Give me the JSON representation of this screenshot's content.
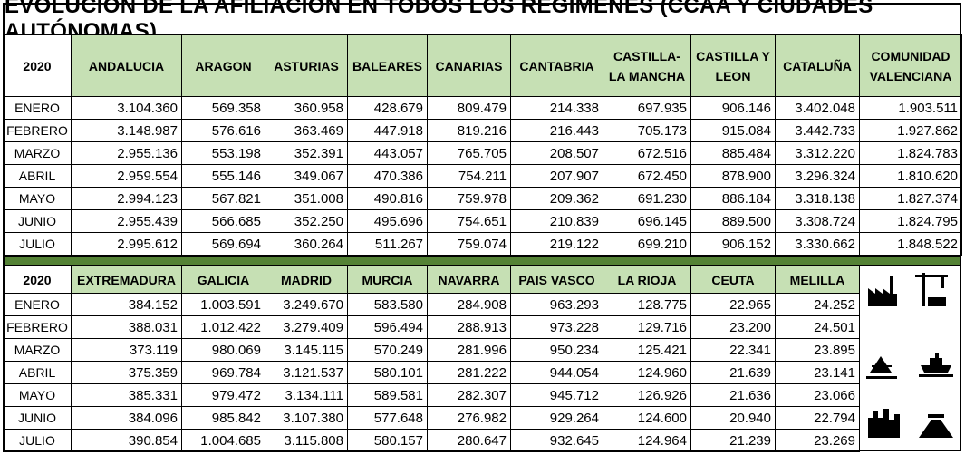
{
  "title": "EVOLUCIÓN DE LA AFILIACIÓN EN TODOS LOS REGÍMENES (CCAA Y CIUDADES AUTÓNOMAS)",
  "tables": [
    {
      "header": [
        "2020",
        "ANDALUCIA",
        "ARAGON",
        "ASTURIAS",
        "BALEARES",
        "CANARIAS",
        "CANTABRIA",
        "CASTILLA-LA MANCHA",
        "CASTILLA Y LEON",
        "CATALUÑA",
        "COMUNIDAD VALENCIANA"
      ],
      "rows": [
        [
          "ENERO",
          "3.104.360",
          "569.358",
          "360.958",
          "428.679",
          "809.479",
          "214.338",
          "697.935",
          "906.146",
          "3.402.048",
          "1.903.511"
        ],
        [
          "FEBRERO",
          "3.148.987",
          "576.616",
          "363.469",
          "447.918",
          "819.216",
          "216.443",
          "705.173",
          "915.084",
          "3.442.733",
          "1.927.862"
        ],
        [
          "MARZO",
          "2.955.136",
          "553.198",
          "352.391",
          "443.057",
          "765.705",
          "208.507",
          "672.516",
          "885.484",
          "3.312.220",
          "1.824.783"
        ],
        [
          "ABRIL",
          "2.959.554",
          "555.146",
          "349.067",
          "470.386",
          "754.211",
          "207.907",
          "672.450",
          "878.900",
          "3.296.324",
          "1.810.620"
        ],
        [
          "MAYO",
          "2.994.123",
          "567.821",
          "351.008",
          "490.816",
          "759.978",
          "209.362",
          "691.230",
          "886.184",
          "3.318.138",
          "1.827.374"
        ],
        [
          "JUNIO",
          "2.955.439",
          "566.685",
          "352.250",
          "495.696",
          "754.651",
          "210.839",
          "696.145",
          "889.500",
          "3.308.724",
          "1.824.795"
        ],
        [
          "JULIO",
          "2.995.612",
          "569.694",
          "360.264",
          "511.267",
          "759.074",
          "219.122",
          "699.210",
          "906.152",
          "3.330.662",
          "1.848.522"
        ]
      ]
    },
    {
      "header": [
        "2020",
        "EXTREMADURA",
        "GALICIA",
        "MADRID",
        "MURCIA",
        "NAVARRA",
        "PAIS VASCO",
        "LA RIOJA",
        "CEUTA",
        "MELILLA"
      ],
      "rows": [
        [
          "ENERO",
          "384.152",
          "1.003.591",
          "3.249.670",
          "583.580",
          "284.908",
          "963.293",
          "128.775",
          "22.965",
          "24.252"
        ],
        [
          "FEBRERO",
          "388.031",
          "1.012.422",
          "3.279.409",
          "596.494",
          "288.913",
          "973.228",
          "129.716",
          "23.200",
          "24.501"
        ],
        [
          "MARZO",
          "373.119",
          "980.069",
          "3.145.115",
          "570.249",
          "281.996",
          "950.234",
          "125.421",
          "22.341",
          "23.895"
        ],
        [
          "ABRIL",
          "375.359",
          "969.784",
          "3.121.537",
          "580.101",
          "281.222",
          "944.054",
          "124.960",
          "21.639",
          "23.141"
        ],
        [
          "MAYO",
          "385.331",
          "979.472",
          "3.134.111",
          "589.581",
          "282.307",
          "945.712",
          "126.926",
          "21.636",
          "23.066"
        ],
        [
          "JUNIO",
          "384.096",
          "985.842",
          "3.107.380",
          "577.648",
          "276.982",
          "929.264",
          "124.600",
          "20.940",
          "22.794"
        ],
        [
          "JULIO",
          "390.854",
          "1.004.685",
          "3.115.808",
          "580.157",
          "280.647",
          "932.645",
          "124.964",
          "21.239",
          "23.269"
        ]
      ]
    }
  ]
}
